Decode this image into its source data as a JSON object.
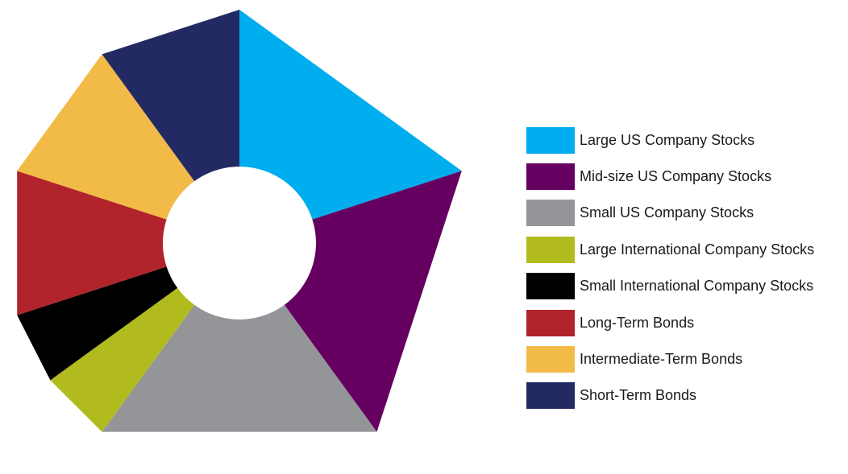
{
  "chart_data": {
    "type": "pie",
    "variant": "donut",
    "title": "",
    "categories": [
      "Large US Company Stocks",
      "Mid-size US Company Stocks",
      "Small US Company Stocks",
      "Large International Company Stocks",
      "Small International Company Stocks",
      "Long-Term Bonds",
      "Intermediate-Term Bonds",
      "Short-Term Bonds"
    ],
    "values": [
      20,
      20,
      20,
      5,
      5,
      10,
      10,
      10
    ],
    "unit": "%",
    "colors": [
      "#00adee",
      "#650061",
      "#939598",
      "#b2bb1e",
      "#000000",
      "#b1242b",
      "#f2bb47",
      "#232a63"
    ],
    "legend": {
      "position": "right",
      "items": [
        {
          "label": "Large US Company Stocks",
          "color": "#00adee"
        },
        {
          "label": "Mid-size US Company Stocks",
          "color": "#650061"
        },
        {
          "label": "Small US Company Stocks",
          "color": "#939598"
        },
        {
          "label": "Large International Company Stocks",
          "color": "#b2bb1e"
        },
        {
          "label": "Small International Company Stocks",
          "color": "#000000"
        },
        {
          "label": "Long-Term Bonds",
          "color": "#b1242b"
        },
        {
          "label": "Intermediate-Term Bonds",
          "color": "#f2bb47"
        },
        {
          "label": "Short-Term Bonds",
          "color": "#232a63"
        }
      ]
    }
  }
}
